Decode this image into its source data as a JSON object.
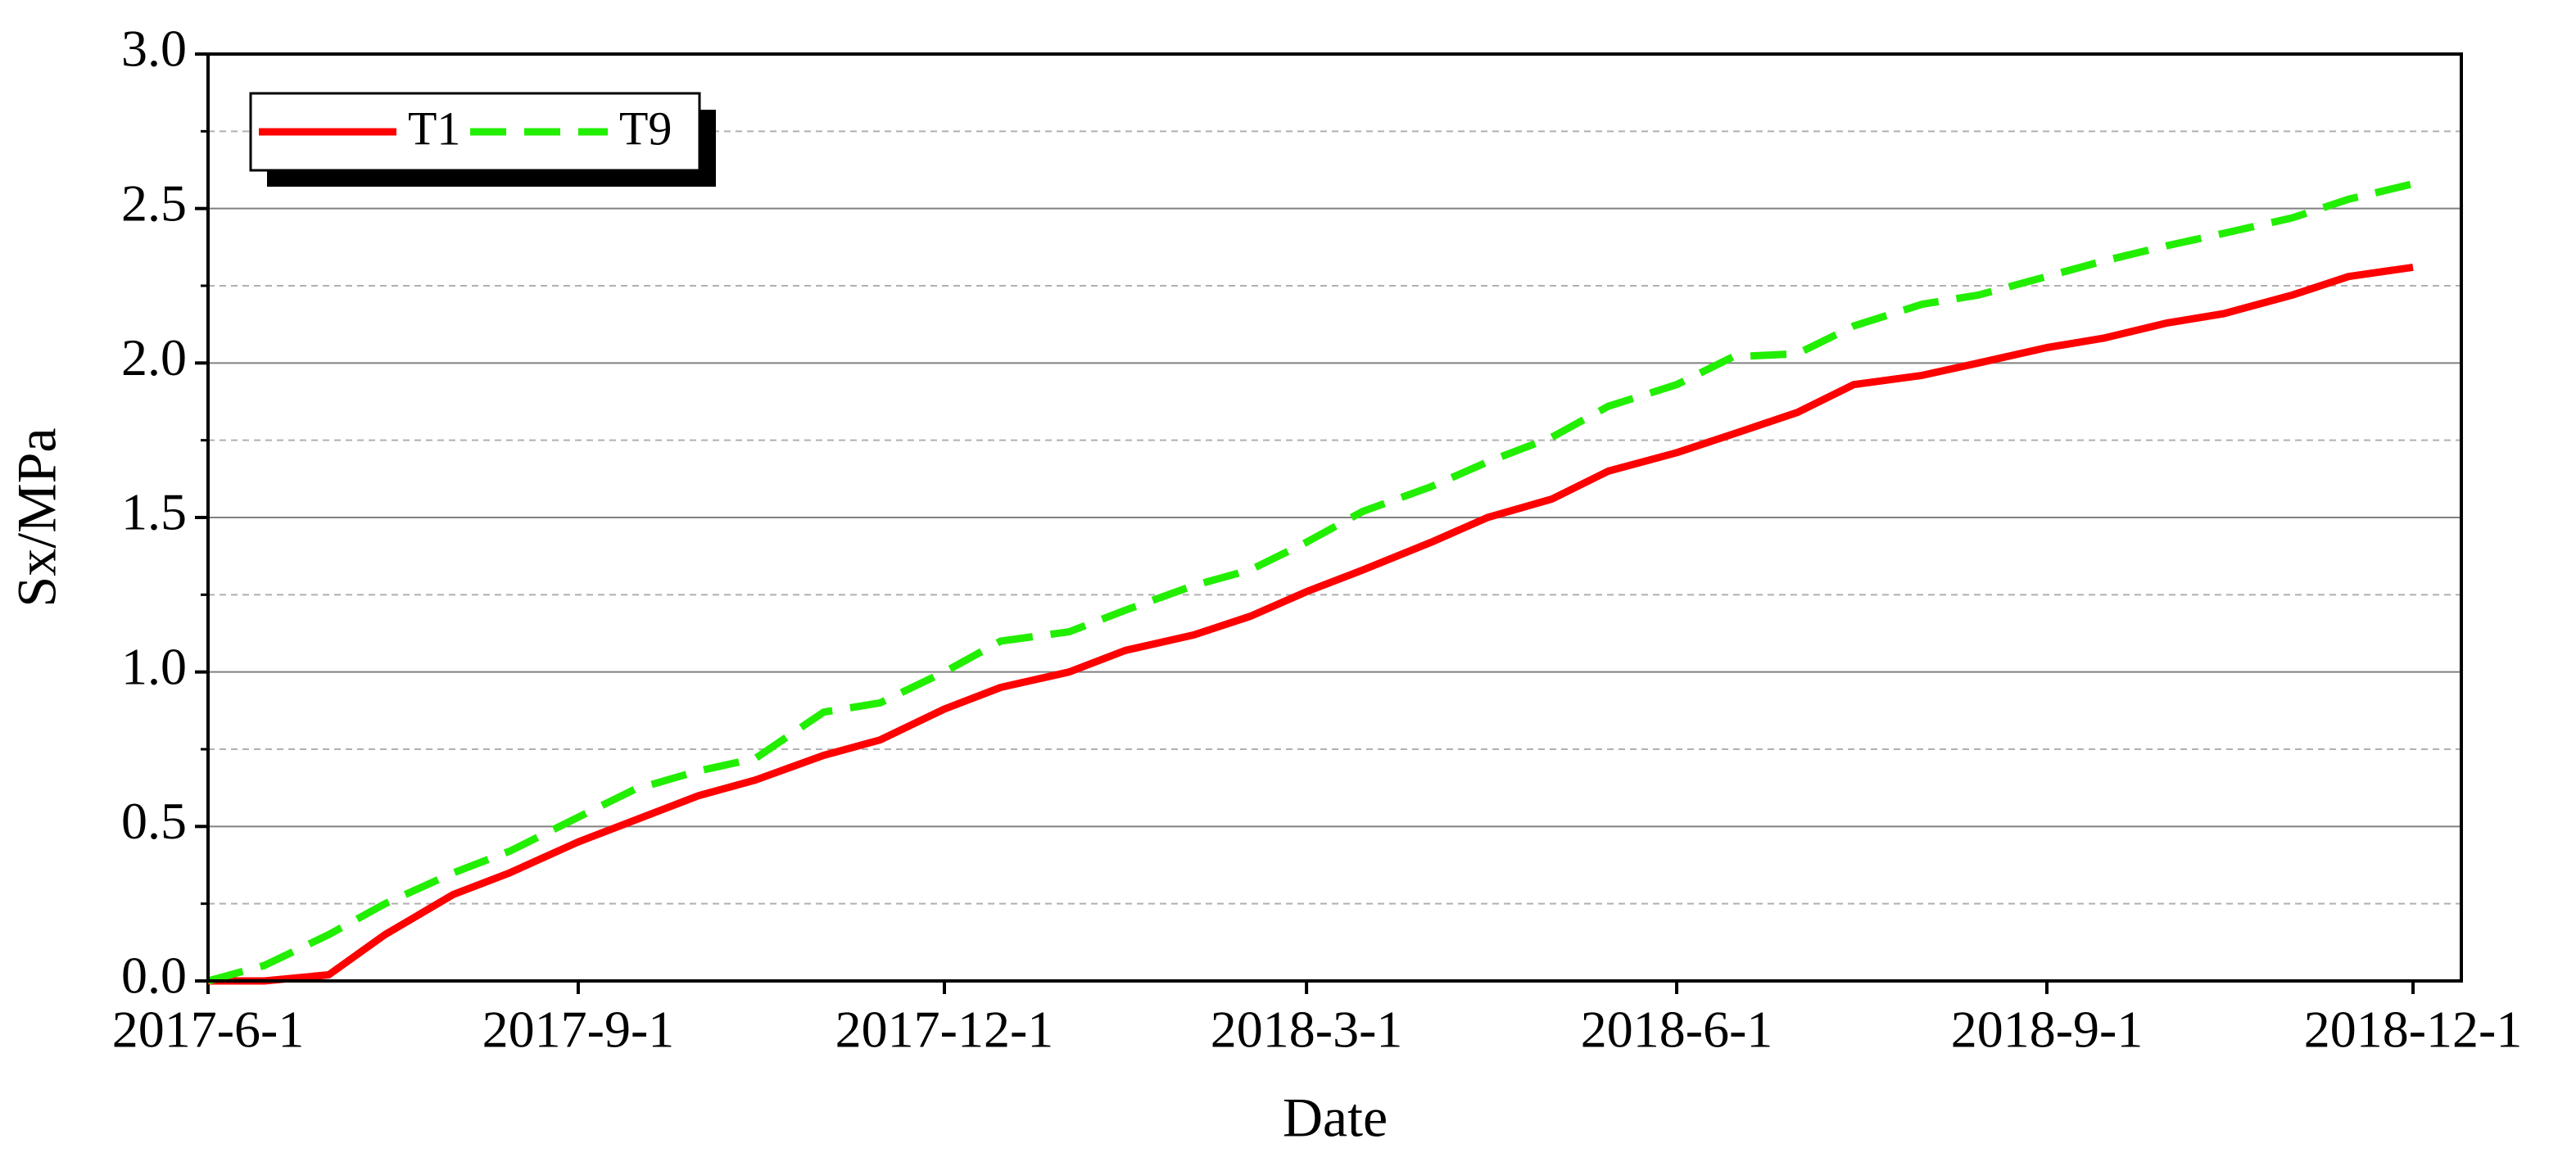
{
  "chart_data": {
    "type": "line",
    "xlabel": "Date",
    "ylabel": "Sx/MPa",
    "x": [
      "2017-6-1",
      "2017-6-15",
      "2017-7-1",
      "2017-7-15",
      "2017-8-1",
      "2017-8-15",
      "2017-9-1",
      "2017-9-15",
      "2017-10-1",
      "2017-10-15",
      "2017-11-1",
      "2017-11-15",
      "2017-12-1",
      "2017-12-15",
      "2018-1-1",
      "2018-1-15",
      "2018-2-1",
      "2018-2-15",
      "2018-3-1",
      "2018-3-15",
      "2018-4-1",
      "2018-4-15",
      "2018-5-1",
      "2018-5-15",
      "2018-6-1",
      "2018-6-15",
      "2018-7-1",
      "2018-7-15",
      "2018-8-1",
      "2018-8-15",
      "2018-9-1",
      "2018-9-15",
      "2018-10-1",
      "2018-10-15",
      "2018-11-1",
      "2018-11-15",
      "2018-12-1"
    ],
    "series": [
      {
        "name": "T1",
        "color": "#ff0000",
        "dash": "solid",
        "values": [
          0,
          0,
          0.02,
          0.15,
          0.28,
          0.35,
          0.45,
          0.52,
          0.6,
          0.65,
          0.73,
          0.78,
          0.88,
          0.95,
          1.0,
          1.07,
          1.12,
          1.18,
          1.26,
          1.33,
          1.42,
          1.5,
          1.56,
          1.65,
          1.71,
          1.77,
          1.84,
          1.93,
          1.96,
          2.0,
          2.05,
          2.08,
          2.13,
          2.16,
          2.22,
          2.28,
          2.31
        ]
      },
      {
        "name": "T9",
        "color": "#22ee00",
        "dash": "dashed",
        "values": [
          0,
          0.05,
          0.15,
          0.25,
          0.35,
          0.42,
          0.53,
          0.62,
          0.68,
          0.72,
          0.87,
          0.9,
          1.0,
          1.1,
          1.13,
          1.2,
          1.28,
          1.33,
          1.42,
          1.52,
          1.6,
          1.68,
          1.76,
          1.86,
          1.93,
          2.02,
          2.03,
          2.12,
          2.19,
          2.22,
          2.28,
          2.33,
          2.38,
          2.42,
          2.47,
          2.53,
          2.58
        ]
      }
    ],
    "xlim": [
      "2017-6-1",
      "2018-12-13"
    ],
    "xticks": [
      "2017-6-1",
      "2017-9-1",
      "2017-12-1",
      "2018-3-1",
      "2018-6-1",
      "2018-9-1",
      "2018-12-1"
    ],
    "ylim": [
      0,
      3
    ],
    "yticks": [
      {
        "value": 0,
        "label": "0.0"
      },
      0.5,
      {
        "value": 1,
        "label": "1.0"
      },
      1.5,
      {
        "value": 2,
        "label": "2.0"
      },
      2.5,
      {
        "value": 3,
        "label": "3.0"
      }
    ],
    "yminorticks": [
      0.25,
      0.75,
      1.25,
      1.75,
      2.25,
      2.75
    ],
    "grid": true,
    "legend": "upper left"
  }
}
